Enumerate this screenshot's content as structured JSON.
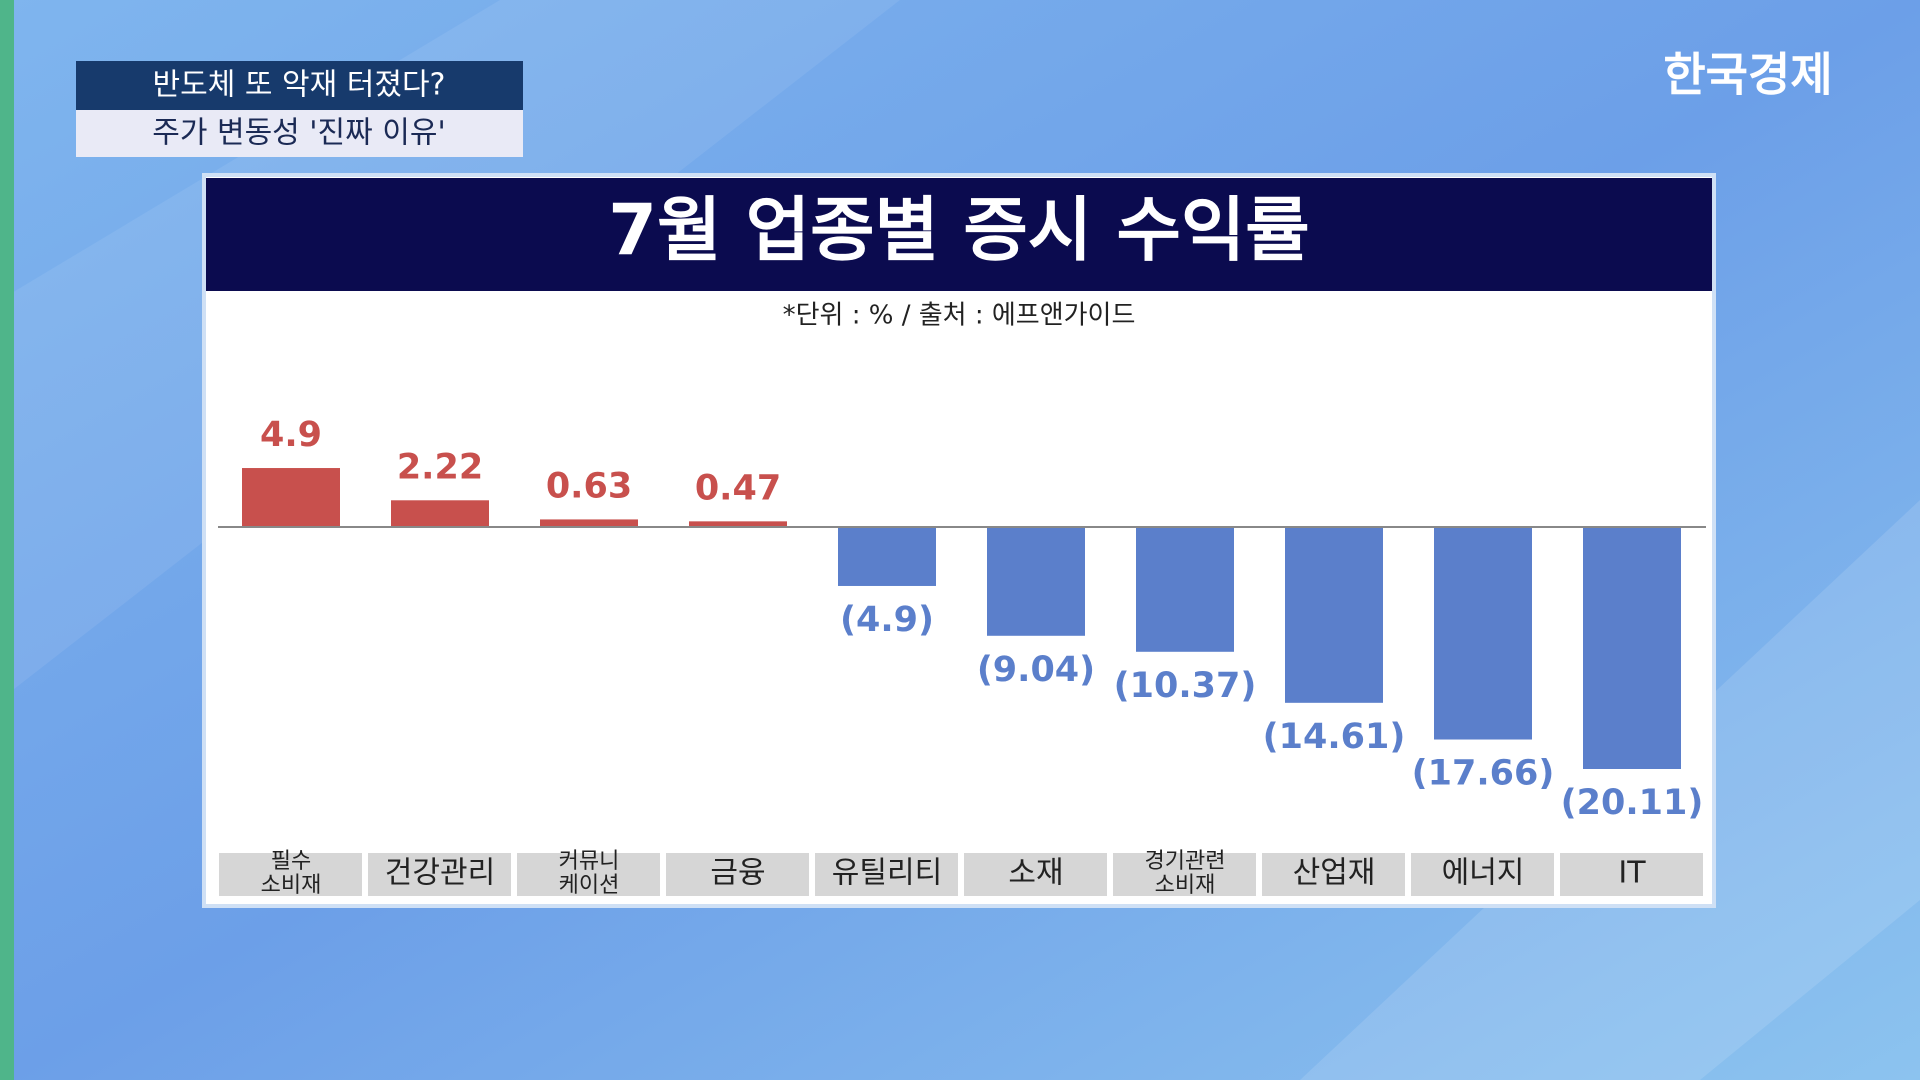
{
  "header": {
    "line1": "반도체 또 악재 터졌다?",
    "line2": "주가 변동성 '진짜 이유'",
    "logo": "한국경제"
  },
  "chart_data": {
    "type": "bar",
    "title": "7월 업종별 증시 수익률",
    "subtitle": "*단위 : % / 출처 : 에프앤가이드",
    "categories": [
      "필수\n소비재",
      "건강관리",
      "커뮤니\n케이션",
      "금융",
      "유틸리티",
      "소재",
      "경기관련\n소비재",
      "산업재",
      "에너지",
      "IT"
    ],
    "values": [
      4.9,
      2.22,
      0.63,
      0.47,
      -4.9,
      -9.04,
      -10.37,
      -14.61,
      -17.66,
      -20.11
    ],
    "value_labels": [
      "4.9",
      "2.22",
      "0.63",
      "0.47",
      "(4.9)",
      "(9.04)",
      "(10.37)",
      "(14.61)",
      "(17.66)",
      "(20.11)"
    ],
    "positive_color": "#c8504d",
    "negative_color": "#5b7fcb"
  }
}
